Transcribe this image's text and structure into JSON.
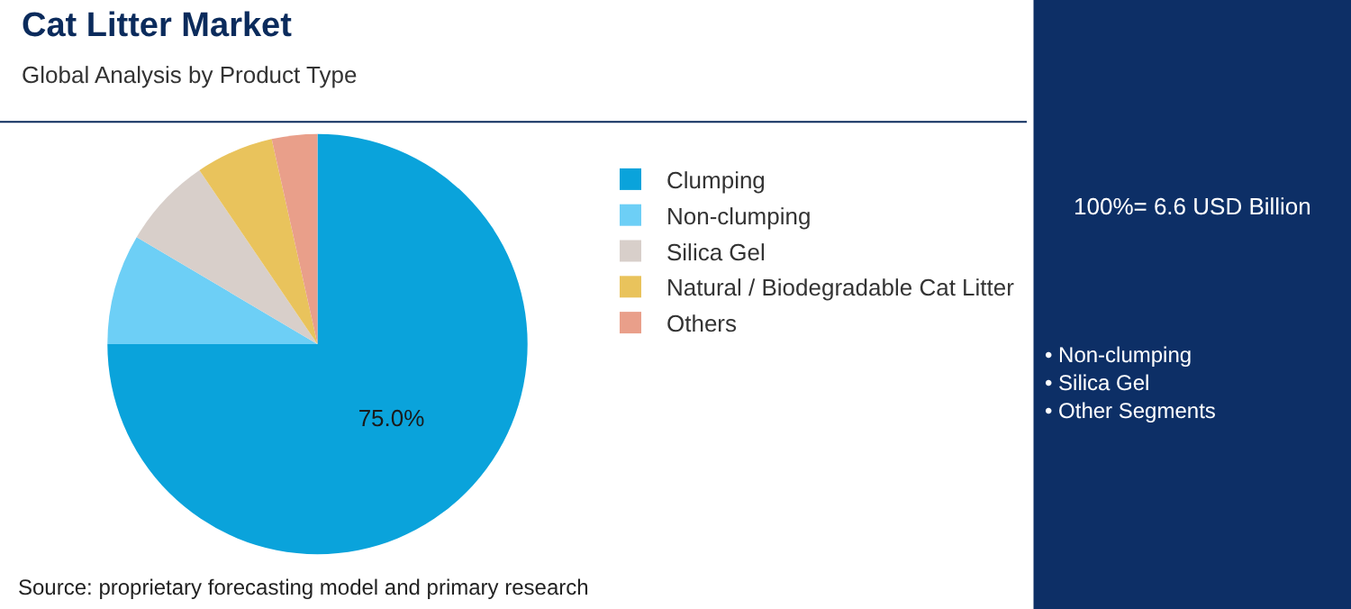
{
  "chart_data": {
    "type": "pie",
    "title": "Cat Litter Market",
    "subtitle": "Global Analysis by Product Type",
    "categories": [
      "Clumping",
      "Non-clumping",
      "Silica Gel",
      "Natural / Biodegradable Cat Litter",
      "Others"
    ],
    "values": [
      75.0,
      8.5,
      7.0,
      6.0,
      3.5
    ],
    "colors": [
      "#0aa3db",
      "#6dcff6",
      "#d8cfca",
      "#e9c35c",
      "#e99f8a"
    ],
    "value_labels": [
      "75.0%",
      null,
      null,
      null,
      null
    ],
    "legend": "right",
    "annotations": [
      "Source: proprietary forecasting model and primary research",
      "100%= 6.6 USD Billion",
      "• Non-clumping\n• Silica Gel\n• Other Segments"
    ]
  }
}
